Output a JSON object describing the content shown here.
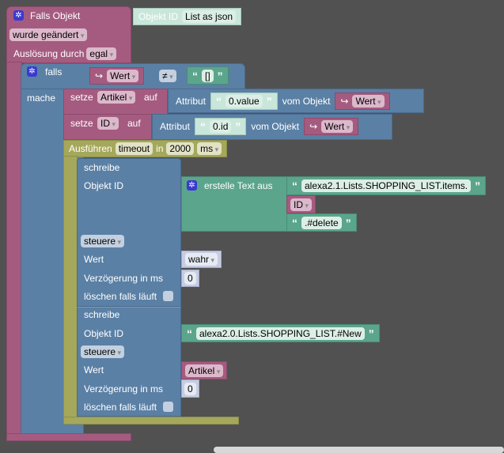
{
  "trigger": {
    "title": "Falls Objekt",
    "object_id_label": "Objekt ID",
    "object_id_value": "List as json",
    "event": "wurde geändert",
    "trigger_by_label": "Auslösung durch",
    "trigger_by": "egal"
  },
  "if_block": {
    "label": "falls",
    "do_label": "mache",
    "var": "Wert",
    "operator": "≠",
    "compare_value": "[]"
  },
  "set1": {
    "label": "setze",
    "var": "Artikel",
    "to": "auf",
    "attr_label": "Attribut",
    "attr": "0.value",
    "from_label": "vom Objekt",
    "source": "Wert"
  },
  "set2": {
    "label": "setze",
    "var": "ID",
    "to": "auf",
    "attr_label": "Attribut",
    "attr": "0.id",
    "from_label": "vom Objekt",
    "source": "Wert"
  },
  "timeout": {
    "label": "Ausführen",
    "name": "timeout",
    "in": "in",
    "value": "2000",
    "unit": "ms"
  },
  "write1": {
    "label": "schreibe",
    "oid_label": "Objekt ID",
    "join_label": "erstelle Text aus",
    "part1": "alexa2.1.Lists.SHOPPING_LIST.items.",
    "part2": "ID",
    "part3": ".#delete",
    "mode": "steuere",
    "value_label": "Wert",
    "value": "wahr",
    "delay_label": "Verzögerung in ms",
    "delay": "0",
    "clear_label": "löschen falls läuft"
  },
  "write2": {
    "label": "schreibe",
    "oid_label": "Objekt ID",
    "oid": "alexa2.0.Lists.SHOPPING_LIST.#New",
    "mode": "steuere",
    "value_label": "Wert",
    "value": "Artikel",
    "delay_label": "Verzögerung in ms",
    "delay": "0",
    "clear_label": "löschen falls läuft"
  },
  "colors": {
    "event": "#a55b80",
    "logic": "#5b80a5",
    "text": "#5ba58c",
    "timeout": "#a5a85b",
    "background": "#515151"
  }
}
